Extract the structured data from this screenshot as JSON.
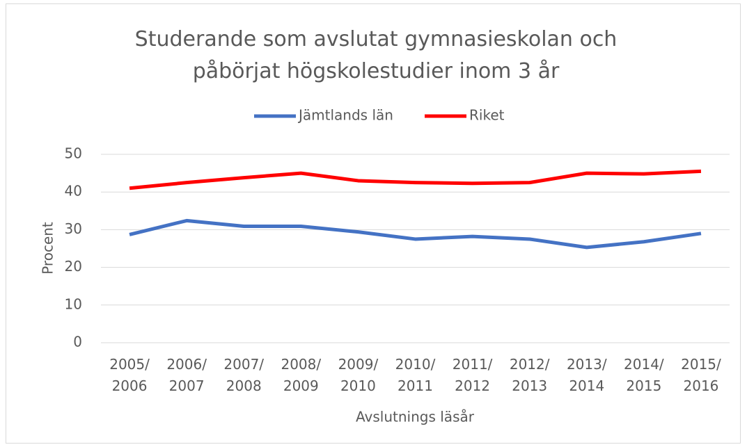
{
  "chart_data": {
    "type": "line",
    "title": "Studerande som avslutat gymnasieskolan och påbörjat högskolestudier inom 3 år",
    "categories": [
      "2005/ 2006",
      "2006/ 2007",
      "2007/ 2008",
      "2008/ 2009",
      "2009/ 2010",
      "2010/ 2011",
      "2011/ 2012",
      "2012/ 2013",
      "2013/ 2014",
      "2014/ 2015",
      "2015/ 2016"
    ],
    "series": [
      {
        "name": "Jämtlands län",
        "color": "#4472c4",
        "values": [
          28.7,
          32.4,
          30.9,
          30.9,
          29.4,
          27.5,
          28.2,
          27.5,
          25.3,
          26.8,
          29.0
        ]
      },
      {
        "name": "Riket",
        "color": "#ff0000",
        "values": [
          41.0,
          42.5,
          43.8,
          45.0,
          43.0,
          42.5,
          42.3,
          42.5,
          45.0,
          44.8,
          45.5
        ]
      }
    ],
    "y_label": "Procent",
    "x_label": "Avslutnings läsår",
    "ylim": [
      0,
      50
    ],
    "yticks": [
      0,
      10,
      20,
      30,
      40,
      50
    ],
    "grid": true,
    "legend": "top"
  }
}
